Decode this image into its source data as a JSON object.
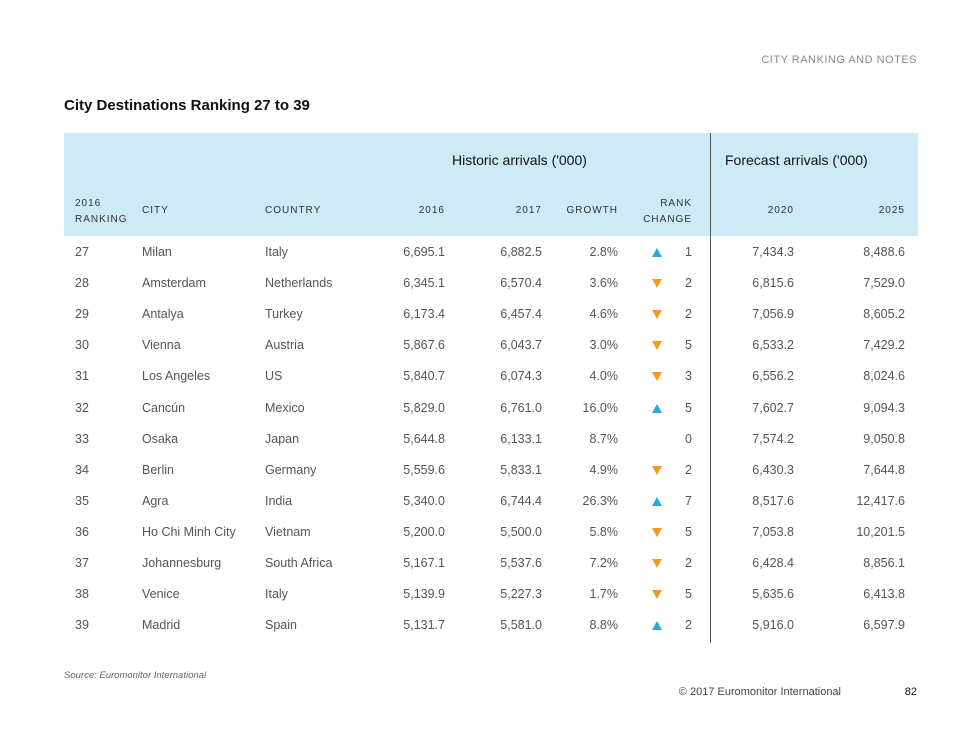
{
  "header": {
    "section": "CITY RANKING AND NOTES",
    "title": "City Destinations Ranking 27 to 39"
  },
  "table": {
    "groups": [
      "Historic arrivals ('000)",
      "Forecast arrivals ('000)"
    ],
    "columns": [
      "2016 RANKING",
      "CITY",
      "COUNTRY",
      "2016",
      "2017",
      "GROWTH",
      "RANK CHANGE",
      "2020",
      "2025"
    ],
    "rows": [
      [
        "27",
        "Milan",
        "Italy",
        "6,695.1",
        "6,882.5",
        "2.8%",
        "1",
        "7,434.3",
        "8,488.6"
      ],
      [
        "28",
        "Amsterdam",
        "Netherlands",
        "6,345.1",
        "6,570.4",
        "3.6%",
        "2",
        "6,815.6",
        "7,529.0"
      ],
      [
        "29",
        "Antalya",
        "Turkey",
        "6,173.4",
        "6,457.4",
        "4.6%",
        "2",
        "7,056.9",
        "8,605.2"
      ],
      [
        "30",
        "Vienna",
        "Austria",
        "5,867.6",
        "6,043.7",
        "3.0%",
        "5",
        "6,533.2",
        "7,429.2"
      ],
      [
        "31",
        "Los Angeles",
        "US",
        "5,840.7",
        "6,074.3",
        "4.0%",
        "3",
        "6,556.2",
        "8,024.6"
      ],
      [
        "32",
        "Cancún",
        "Mexico",
        "5,829.0",
        "6,761.0",
        "16.0%",
        "5",
        "7,602.7",
        "9,094.3"
      ],
      [
        "33",
        "Osaka",
        "Japan",
        "5,644.8",
        "6,133.1",
        "8.7%",
        "0",
        "7,574.2",
        "9,050.8"
      ],
      [
        "34",
        "Berlin",
        "Germany",
        "5,559.6",
        "5,833.1",
        "4.9%",
        "2",
        "6,430.3",
        "7,644.8"
      ],
      [
        "35",
        "Agra",
        "India",
        "5,340.0",
        "6,744.4",
        "26.3%",
        "7",
        "8,517.6",
        "12,417.6"
      ],
      [
        "36",
        "Ho Chi Minh City",
        "Vietnam",
        "5,200.0",
        "5,500.0",
        "5.8%",
        "5",
        "7,053.8",
        "10,201.5"
      ],
      [
        "37",
        "Johannesburg",
        "South Africa",
        "5,167.1",
        "5,537.6",
        "7.2%",
        "2",
        "6,428.4",
        "8,856.1"
      ],
      [
        "38",
        "Venice",
        "Italy",
        "5,139.9",
        "5,227.3",
        "1.7%",
        "5",
        "5,635.6",
        "6,413.8"
      ],
      [
        "39",
        "Madrid",
        "Spain",
        "5,131.7",
        "5,581.0",
        "8.8%",
        "2",
        "5,916.0",
        "6,597.9"
      ]
    ],
    "rank_directions": [
      "up",
      "down",
      "down",
      "down",
      "down",
      "up",
      null,
      "down",
      "up",
      "down",
      "down",
      "down",
      "up"
    ]
  },
  "footer": {
    "source": "Source: Euromonitor International",
    "copyright": "© 2017 Euromonitor International",
    "page": "82"
  }
}
